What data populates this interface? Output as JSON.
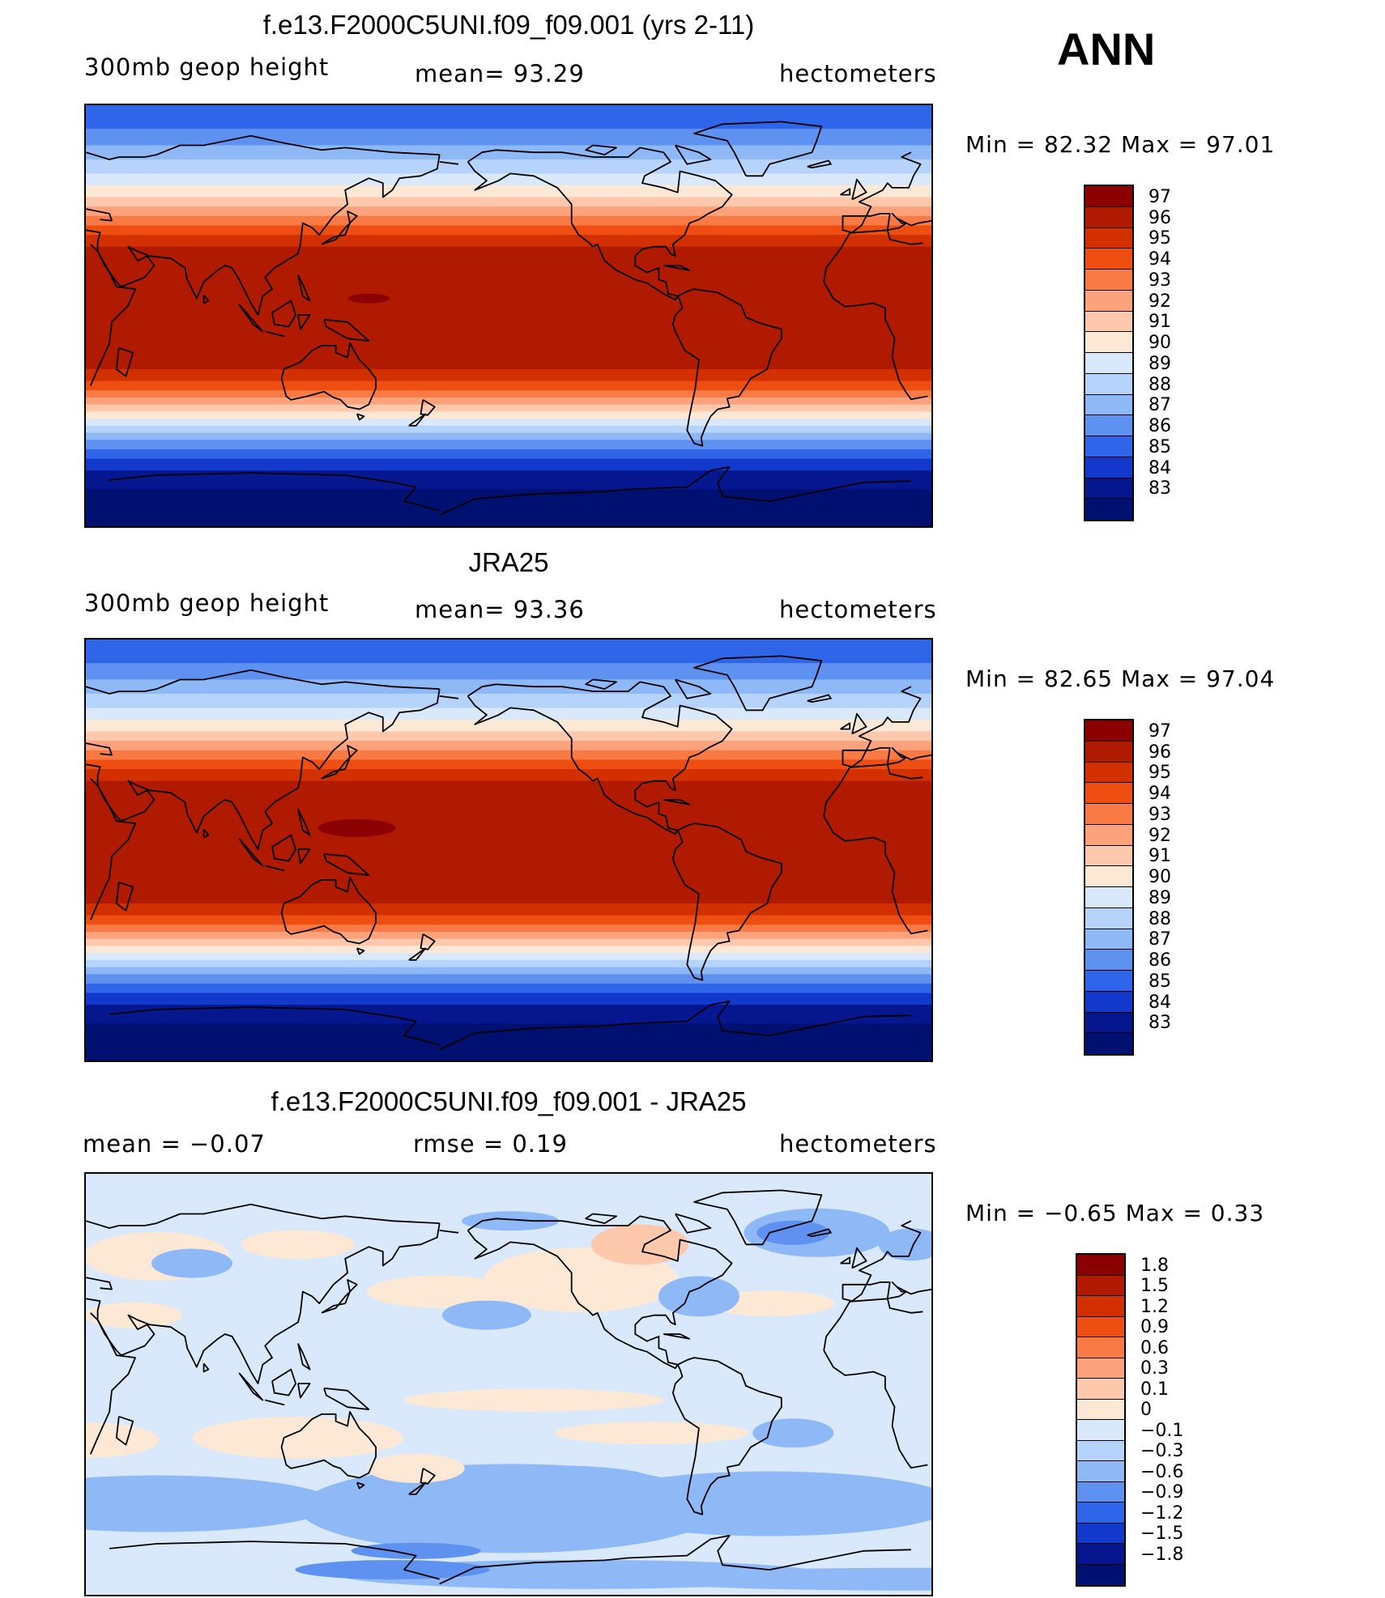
{
  "season": "ANN",
  "units": "hectometers",
  "panels": [
    {
      "title": "f.e13.F2000C5UNI.f09_f09.001 (yrs 2-11)",
      "variable": "300mb  geop  height",
      "stat1": "mean=   93.29",
      "units": "hectometers",
      "minmax": "Min  =    82.32  Max  =    97.01"
    },
    {
      "title": "JRA25",
      "variable": "300mb  geop  height",
      "stat1": "mean=   93.36",
      "units": "hectometers",
      "minmax": "Min  =    82.65  Max  =    97.04"
    },
    {
      "title": "f.e13.F2000C5UNI.f09_f09.001 - JRA25",
      "variable": "mean  =    −0.07",
      "stat1": "rmse  =     0.19",
      "units": "hectometers",
      "minmax": "Min  =   −0.65  Max  =     0.33"
    }
  ],
  "chart_data": [
    {
      "type": "heatmap",
      "title": "f.e13.F2000C5UNI.f09_f09.001 (yrs 2-11)",
      "field": "300mb geop height",
      "units": "hectometers",
      "mean": 93.29,
      "min": 82.32,
      "max": 97.01,
      "colorbar_levels": [
        97,
        96,
        95,
        94,
        93,
        92,
        91,
        90,
        89,
        88,
        87,
        86,
        85,
        84,
        83
      ],
      "colorbar_colors": [
        "#8b0000",
        "#b01a00",
        "#d33000",
        "#ef4e12",
        "#fa7a45",
        "#fca27c",
        "#fdc8ab",
        "#fde8d6",
        "#d9e9fb",
        "#b6d3fb",
        "#8fb8f7",
        "#5f92f0",
        "#2f65e8",
        "#1238cc",
        "#06168f",
        "#001070"
      ]
    },
    {
      "type": "heatmap",
      "title": "JRA25",
      "field": "300mb geop height",
      "units": "hectometers",
      "mean": 93.36,
      "min": 82.65,
      "max": 97.04,
      "colorbar_levels": [
        97,
        96,
        95,
        94,
        93,
        92,
        91,
        90,
        89,
        88,
        87,
        86,
        85,
        84,
        83
      ],
      "colorbar_colors": [
        "#8b0000",
        "#b01a00",
        "#d33000",
        "#ef4e12",
        "#fa7a45",
        "#fca27c",
        "#fdc8ab",
        "#fde8d6",
        "#d9e9fb",
        "#b6d3fb",
        "#8fb8f7",
        "#5f92f0",
        "#2f65e8",
        "#1238cc",
        "#06168f",
        "#001070"
      ]
    },
    {
      "type": "heatmap",
      "title": "f.e13.F2000C5UNI.f09_f09.001 - JRA25",
      "units": "hectometers",
      "mean": -0.07,
      "rmse": 0.19,
      "min": -0.65,
      "max": 0.33,
      "colorbar_levels": [
        "1.8",
        "1.5",
        "1.2",
        "0.9",
        "0.6",
        "0.3",
        "0.1",
        "0",
        "−0.1",
        "−0.3",
        "−0.6",
        "−0.9",
        "−1.2",
        "−1.5",
        "−1.8"
      ],
      "colorbar_colors": [
        "#8b0000",
        "#b01a00",
        "#d33000",
        "#ef4e12",
        "#fa7a45",
        "#fca27c",
        "#fdc8ab",
        "#fde8d6",
        "#d9e9fb",
        "#b6d3fb",
        "#8fb8f7",
        "#5f92f0",
        "#2f65e8",
        "#1238cc",
        "#06168f",
        "#001070"
      ]
    }
  ]
}
